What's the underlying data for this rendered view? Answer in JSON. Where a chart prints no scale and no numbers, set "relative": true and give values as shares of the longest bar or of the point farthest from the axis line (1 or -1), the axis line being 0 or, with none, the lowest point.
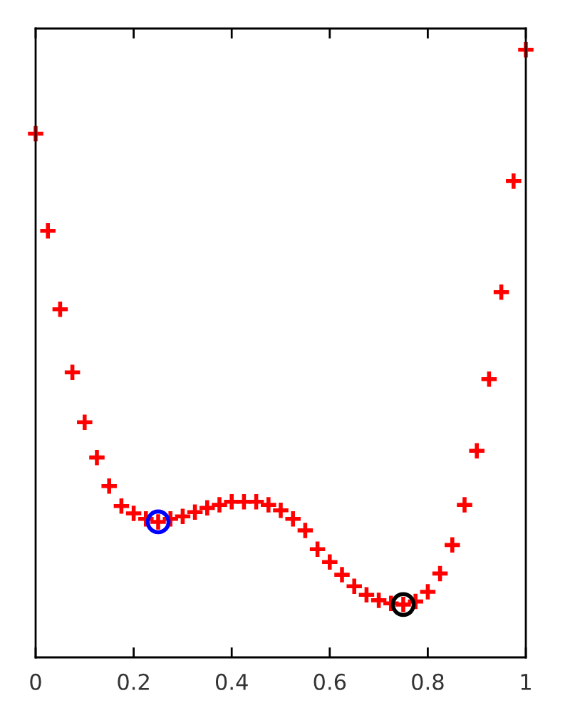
{
  "chart_data": {
    "type": "scatter",
    "relative": true,
    "xlim": [
      0,
      1
    ],
    "xticks": [
      0,
      0.2,
      0.4,
      0.6,
      0.8,
      1
    ],
    "grid": false,
    "series": [
      {
        "color": "#ff0000",
        "marker": "cross",
        "x": [
          0,
          0.025,
          0.05,
          0.075,
          0.1,
          0.125,
          0.15,
          0.175,
          0.2,
          0.225,
          0.25,
          0.275,
          0.3,
          0.325,
          0.35,
          0.375,
          0.4,
          0.425,
          0.45,
          0.475,
          0.5,
          0.525,
          0.55,
          0.575,
          0.6,
          0.625,
          0.65,
          0.675,
          0.7,
          0.725,
          0.75,
          0.775,
          0.8,
          0.825,
          0.85,
          0.875,
          0.9,
          0.925,
          0.95,
          0.975,
          1
        ],
        "values": [
          0.862,
          0.702,
          0.573,
          0.469,
          0.387,
          0.329,
          0.282,
          0.249,
          0.237,
          0.228,
          0.223,
          0.228,
          0.232,
          0.239,
          0.246,
          0.251,
          0.256,
          0.256,
          0.256,
          0.251,
          0.242,
          0.228,
          0.209,
          0.178,
          0.157,
          0.136,
          0.117,
          0.103,
          0.094,
          0.089,
          0.087,
          0.092,
          0.108,
          0.138,
          0.185,
          0.251,
          0.34,
          0.458,
          0.601,
          0.784,
          1.0
        ]
      },
      {
        "color": "#0000ff",
        "marker": "circle",
        "x": [
          0.25
        ],
        "values": [
          0.223
        ]
      },
      {
        "color": "#000000",
        "marker": "circle",
        "x": [
          0.75
        ],
        "values": [
          0.087
        ]
      }
    ]
  }
}
